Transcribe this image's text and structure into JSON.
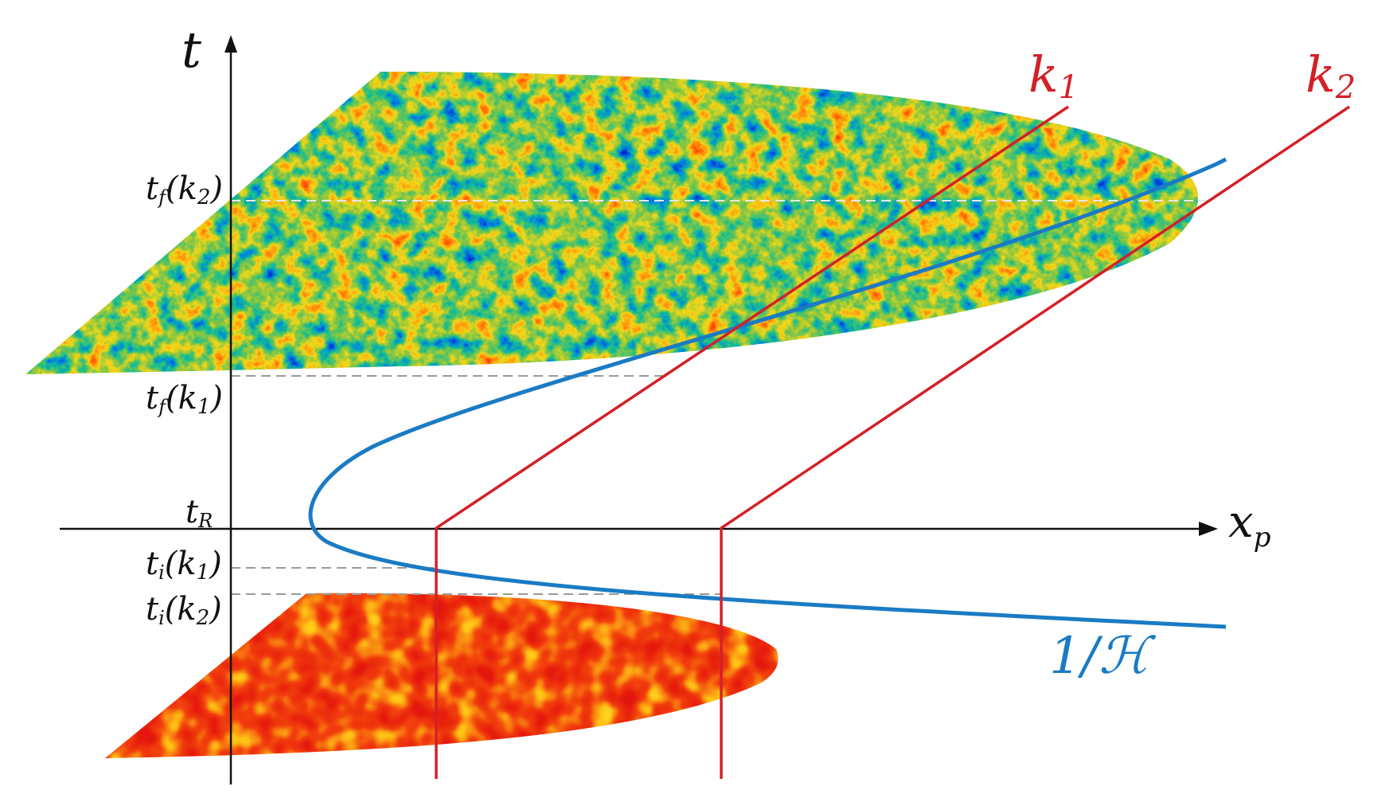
{
  "axes": {
    "vertical_label": "t",
    "horizontal_label_main": "x",
    "horizontal_label_sub": "p"
  },
  "ticks": {
    "tf_k2": {
      "base": "t",
      "sub": "f",
      "arg": "k",
      "argsub": "2"
    },
    "tf_k1": {
      "base": "t",
      "sub": "f",
      "arg": "k",
      "argsub": "1"
    },
    "tR": {
      "base": "t",
      "sub": "R"
    },
    "ti_k1": {
      "base": "t",
      "sub": "i",
      "arg": "k",
      "argsub": "1"
    },
    "ti_k2": {
      "base": "t",
      "sub": "i",
      "arg": "k",
      "argsub": "2"
    }
  },
  "modes": {
    "k1": {
      "main": "k",
      "sub": "1"
    },
    "k2": {
      "main": "k",
      "sub": "2"
    }
  },
  "hubble_label": "1/ℋ",
  "colors": {
    "mode_lines": "#d42027",
    "hubble_curve": "#1a7bc4",
    "axes": "#111111",
    "guides": "#9a9a9a",
    "guide_top": "#e8e8e8"
  }
}
